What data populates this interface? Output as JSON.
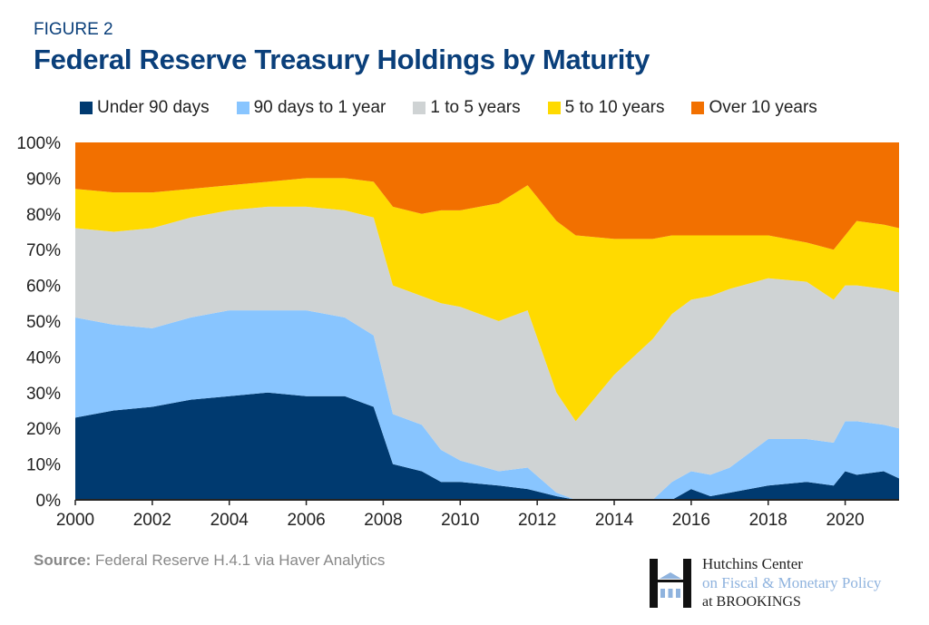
{
  "figure_label": "FIGURE 2",
  "source_label": "Source:",
  "source_text": "Federal Reserve H.4.1 via Haver Analytics",
  "logo": {
    "line1": "Hutchins Center",
    "line2": "on Fiscal & Monetary Policy",
    "line3": "at BROOKINGS"
  },
  "chart_data": {
    "type": "area",
    "stacked": "percent",
    "title": "Federal Reserve Treasury Holdings by Maturity",
    "xlabel": "",
    "ylabel": "",
    "xlim": [
      2000,
      2021.4
    ],
    "ylim": [
      0,
      100
    ],
    "x_ticks": [
      "2000",
      "2002",
      "2004",
      "2006",
      "2008",
      "2010",
      "2012",
      "2014",
      "2016",
      "2018",
      "2020"
    ],
    "y_ticks": [
      "0%",
      "10%",
      "20%",
      "30%",
      "40%",
      "50%",
      "60%",
      "70%",
      "80%",
      "90%",
      "100%"
    ],
    "grid": false,
    "legend_placement": "top",
    "x": [
      2000,
      2001,
      2002,
      2003,
      2004,
      2005,
      2006,
      2007,
      2007.75,
      2008.25,
      2009,
      2009.5,
      2010,
      2011,
      2011.75,
      2012.5,
      2013,
      2014,
      2015,
      2015.5,
      2016,
      2016.5,
      2017,
      2018,
      2019,
      2019.7,
      2020,
      2020.3,
      2021,
      2021.4
    ],
    "series": [
      {
        "name": "Under 90 days",
        "color": "#003a70",
        "values": [
          23,
          25,
          26,
          28,
          29,
          30,
          29,
          29,
          26,
          10,
          8,
          5,
          5,
          4,
          3,
          1,
          0,
          0,
          0,
          0,
          3,
          1,
          2,
          4,
          5,
          4,
          8,
          7,
          8,
          6
        ]
      },
      {
        "name": "90 days to 1 year",
        "color": "#88c5ff",
        "values": [
          28,
          24,
          22,
          23,
          24,
          23,
          24,
          22,
          20,
          14,
          13,
          9,
          6,
          4,
          6,
          1,
          0,
          0,
          0,
          5,
          5,
          6,
          7,
          13,
          12,
          12,
          14,
          15,
          13,
          14
        ]
      },
      {
        "name": "1 to 5 years",
        "color": "#cfd3d4",
        "values": [
          25,
          26,
          28,
          28,
          28,
          29,
          29,
          30,
          33,
          36,
          36,
          41,
          43,
          42,
          44,
          28,
          22,
          35,
          45,
          47,
          48,
          50,
          50,
          45,
          44,
          40,
          38,
          38,
          38,
          38
        ]
      },
      {
        "name": "5 to 10 years",
        "color": "#ffda00",
        "values": [
          11,
          11,
          10,
          8,
          7,
          7,
          8,
          9,
          10,
          22,
          23,
          26,
          27,
          33,
          35,
          48,
          52,
          38,
          28,
          22,
          18,
          17,
          15,
          12,
          11,
          14,
          14,
          18,
          18,
          18
        ]
      },
      {
        "name": "Over 10 years",
        "color": "#f27000",
        "values": [
          13,
          14,
          14,
          13,
          12,
          11,
          10,
          10,
          11,
          18,
          20,
          19,
          19,
          17,
          12,
          22,
          26,
          27,
          27,
          26,
          26,
          26,
          26,
          26,
          28,
          30,
          26,
          22,
          23,
          24
        ]
      }
    ]
  }
}
